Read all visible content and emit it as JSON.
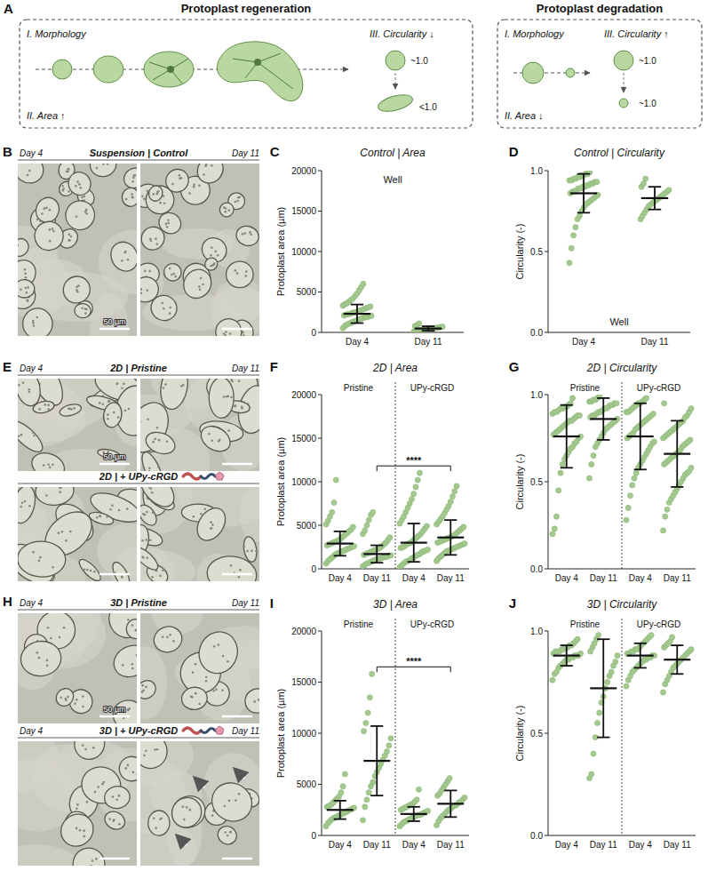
{
  "schematic": {
    "panel": "A",
    "boxes": [
      {
        "title": "Protoplast regeneration",
        "morphology": "I. Morphology",
        "area": "II. Area ↑",
        "circularity": "III. Circularity ↓",
        "circ_start": "~1.0",
        "circ_end": "<1.0"
      },
      {
        "title": "Protoplast degradation",
        "morphology": "I. Morphology",
        "area": "II. Area ↓",
        "circularity": "III. Circularity ↑",
        "circ_start": "~1.0",
        "circ_end": "~1.0"
      }
    ]
  },
  "micrographs": [
    {
      "panel": "B",
      "scale_label": "50 µm",
      "rows": [
        {
          "title": "Suspension | Control",
          "left": "Day 4",
          "right": "Day 11"
        }
      ]
    },
    {
      "panel": "E",
      "scale_label": "50 µm",
      "rows": [
        {
          "title": "2D | Pristine",
          "left": "Day 4",
          "right": "Day 11"
        },
        {
          "title": "2D | + UPy-cRGD"
        }
      ]
    },
    {
      "panel": "H",
      "scale_label": "50 µm",
      "rows": [
        {
          "title": "3D | Pristine",
          "left": "Day 4",
          "right": "Day 11"
        },
        {
          "title": "3D | + UPy-cRGD",
          "left": "Day 4",
          "right": "Day 11"
        }
      ]
    }
  ],
  "chart_data": [
    {
      "type": "scatter",
      "panel": "C",
      "title": "Control | Area",
      "annotation": "Well",
      "ylabel": "Protoplast area (µm)",
      "categories": [
        "Day 4",
        "Day 11"
      ],
      "points": [
        [
          520,
          800,
          950,
          1100,
          1200,
          1300,
          1400,
          1500,
          1600,
          1700,
          1800,
          1850,
          1900,
          2000,
          2050,
          2100,
          2200,
          2250,
          2300,
          2400,
          2450,
          2500,
          2600,
          2700,
          2800,
          2900,
          3000,
          3100,
          3200,
          3300,
          3500,
          3600,
          3800,
          4000,
          4200,
          4500,
          4800,
          5200,
          5600,
          6000
        ],
        [
          120,
          180,
          220,
          260,
          300,
          340,
          380,
          420,
          450,
          480,
          520,
          560,
          600,
          650,
          700,
          780,
          900,
          1100
        ]
      ],
      "mean": [
        2300,
        480
      ],
      "sd": [
        1150,
        280
      ],
      "ylim": [
        0,
        20000
      ],
      "yticks": [
        0,
        5000,
        10000,
        15000,
        20000
      ],
      "color": "#a3c98f"
    },
    {
      "type": "scatter",
      "panel": "D",
      "title": "Control | Circularity",
      "annotation": "Well",
      "ylabel": "Circularity (-)",
      "categories": [
        "Day 4",
        "Day 11"
      ],
      "points": [
        [
          0.43,
          0.52,
          0.6,
          0.65,
          0.7,
          0.72,
          0.75,
          0.77,
          0.79,
          0.8,
          0.81,
          0.82,
          0.83,
          0.84,
          0.85,
          0.86,
          0.87,
          0.87,
          0.88,
          0.89,
          0.89,
          0.9,
          0.9,
          0.91,
          0.91,
          0.92,
          0.92,
          0.93,
          0.93,
          0.94,
          0.94,
          0.95,
          0.95,
          0.96,
          0.96,
          0.97,
          0.97,
          0.98,
          0.98,
          0.99
        ],
        [
          0.7,
          0.72,
          0.74,
          0.76,
          0.78,
          0.79,
          0.8,
          0.81,
          0.82,
          0.83,
          0.84,
          0.85,
          0.86,
          0.87,
          0.88,
          0.9,
          0.92,
          0.95
        ]
      ],
      "mean": [
        0.86,
        0.83
      ],
      "sd": [
        0.12,
        0.07
      ],
      "ylim": [
        0,
        1
      ],
      "yticks": [
        {
          "value": 0,
          "label": "0.0"
        },
        0.5,
        {
          "value": 1,
          "label": "1.0"
        }
      ],
      "color": "#a3c98f"
    },
    {
      "type": "scatter",
      "panel": "F",
      "title": "2D | Area",
      "ylabel": "Protoplast area (µm)",
      "categories": [
        "Day 4",
        "Day 11",
        "Day 4",
        "Day 11"
      ],
      "group_labels": [
        "Pristine",
        "UPy-cRGD"
      ],
      "points": [
        [
          600,
          900,
          1100,
          1300,
          1500,
          1700,
          1800,
          1900,
          2000,
          2100,
          2200,
          2300,
          2400,
          2500,
          2600,
          2700,
          2800,
          2900,
          3000,
          3100,
          3200,
          3300,
          3500,
          3700,
          3900,
          4100,
          4300,
          4500,
          4800,
          5100,
          5500,
          6000,
          6500,
          7600,
          10200
        ],
        [
          300,
          450,
          600,
          700,
          800,
          900,
          1000,
          1100,
          1150,
          1200,
          1300,
          1350,
          1400,
          1500,
          1550,
          1600,
          1700,
          1800,
          1900,
          2000,
          2100,
          2200,
          2300,
          2400,
          2600,
          2800,
          3000,
          3300,
          3600,
          4000,
          4400,
          5000,
          5600,
          6200,
          6500
        ],
        [
          200,
          400,
          600,
          800,
          900,
          1000,
          1200,
          1300,
          1500,
          1600,
          1700,
          1900,
          2000,
          2100,
          2200,
          2400,
          2500,
          2600,
          2800,
          2900,
          3000,
          3200,
          3400,
          3600,
          3800,
          4000,
          4300,
          4600,
          4900,
          5200,
          5600,
          6000,
          6500,
          7000,
          7500,
          8000,
          8600,
          9400,
          10200,
          11000
        ],
        [
          900,
          1200,
          1400,
          1600,
          1800,
          2000,
          2100,
          2200,
          2300,
          2400,
          2500,
          2600,
          2700,
          2800,
          2900,
          3000,
          3100,
          3200,
          3300,
          3400,
          3500,
          3600,
          3700,
          3800,
          4000,
          4200,
          4400,
          4600,
          4800,
          5100,
          5400,
          5700,
          6000,
          6400,
          6800,
          7200,
          7700,
          8300,
          8900,
          9500
        ]
      ],
      "mean": [
        2900,
        1700,
        3000,
        3600
      ],
      "sd": [
        1400,
        1000,
        2200,
        2000
      ],
      "significance": [
        {
          "label": "****",
          "between": [
            1,
            3
          ]
        }
      ],
      "ylim": [
        0,
        20000
      ],
      "yticks": [
        0,
        5000,
        10000,
        15000,
        20000
      ],
      "color": "#a3c98f"
    },
    {
      "type": "scatter",
      "panel": "G",
      "title": "2D | Circularity",
      "ylabel": "Circularity (-)",
      "categories": [
        "Day 4",
        "Day 11",
        "Day 4",
        "Day 11"
      ],
      "group_labels": [
        "Pristine",
        "UPy-cRGD"
      ],
      "points": [
        [
          0.2,
          0.23,
          0.3,
          0.45,
          0.55,
          0.6,
          0.63,
          0.65,
          0.67,
          0.69,
          0.7,
          0.72,
          0.73,
          0.75,
          0.76,
          0.77,
          0.78,
          0.79,
          0.8,
          0.81,
          0.82,
          0.83,
          0.84,
          0.85,
          0.85,
          0.86,
          0.87,
          0.88,
          0.88,
          0.89,
          0.9,
          0.9,
          0.91,
          0.92,
          0.92,
          0.93,
          0.93,
          0.94,
          0.95,
          0.98
        ],
        [
          0.52,
          0.6,
          0.65,
          0.7,
          0.72,
          0.74,
          0.76,
          0.78,
          0.8,
          0.81,
          0.82,
          0.83,
          0.84,
          0.85,
          0.86,
          0.87,
          0.88,
          0.88,
          0.89,
          0.9,
          0.9,
          0.91,
          0.92,
          0.92,
          0.93,
          0.94,
          0.94,
          0.95,
          0.95,
          0.96,
          0.96,
          0.97,
          0.97,
          0.98,
          0.99
        ],
        [
          0.28,
          0.35,
          0.42,
          0.48,
          0.52,
          0.55,
          0.58,
          0.6,
          0.62,
          0.64,
          0.66,
          0.68,
          0.7,
          0.72,
          0.73,
          0.75,
          0.76,
          0.77,
          0.78,
          0.8,
          0.81,
          0.82,
          0.83,
          0.84,
          0.85,
          0.86,
          0.87,
          0.88,
          0.89,
          0.9,
          0.9,
          0.91,
          0.92,
          0.93,
          0.94,
          0.95,
          0.95,
          0.96,
          0.97,
          0.98
        ],
        [
          0.22,
          0.3,
          0.34,
          0.38,
          0.4,
          0.42,
          0.44,
          0.46,
          0.48,
          0.5,
          0.52,
          0.54,
          0.55,
          0.56,
          0.58,
          0.6,
          0.61,
          0.62,
          0.63,
          0.64,
          0.65,
          0.66,
          0.67,
          0.68,
          0.7,
          0.71,
          0.72,
          0.73,
          0.74,
          0.75,
          0.76,
          0.77,
          0.78,
          0.79,
          0.8,
          0.81,
          0.82,
          0.83,
          0.84,
          0.85,
          0.87,
          0.88,
          0.9,
          0.92,
          0.95
        ]
      ],
      "mean": [
        0.76,
        0.86,
        0.76,
        0.66
      ],
      "sd": [
        0.18,
        0.12,
        0.19,
        0.19
      ],
      "ylim": [
        0,
        1
      ],
      "yticks": [
        {
          "value": 0,
          "label": "0.0"
        },
        0.5,
        {
          "value": 1,
          "label": "1.0"
        }
      ],
      "color": "#a3c98f"
    },
    {
      "type": "scatter",
      "panel": "I",
      "title": "3D | Area",
      "ylabel": "Protoplast area (µm)",
      "categories": [
        "Day 4",
        "Day 11",
        "Day 4",
        "Day 11"
      ],
      "group_labels": [
        "Pristine",
        "UPy-cRGD"
      ],
      "points": [
        [
          900,
          1200,
          1400,
          1600,
          1700,
          1800,
          1900,
          2000,
          2100,
          2200,
          2300,
          2400,
          2500,
          2600,
          2700,
          2800,
          2900,
          3000,
          3200,
          3400,
          3600,
          3800,
          4200,
          4800,
          6000
        ],
        [
          1500,
          2800,
          3500,
          4200,
          4800,
          5200,
          5800,
          6200,
          6600,
          7000,
          7400,
          7800,
          8200,
          8800,
          9500,
          10200,
          11000,
          12000,
          13500,
          15800
        ],
        [
          900,
          1100,
          1300,
          1400,
          1500,
          1600,
          1700,
          1800,
          1900,
          2000,
          2000,
          2100,
          2200,
          2300,
          2400,
          2500,
          2600,
          2700,
          2800,
          2900,
          3000,
          3100,
          3300,
          3500,
          4500
        ],
        [
          1000,
          1400,
          1700,
          1900,
          2100,
          2300,
          2500,
          2600,
          2800,
          2900,
          3000,
          3200,
          3300,
          3500,
          3700,
          3900,
          4100,
          4400,
          4700,
          5000,
          5300,
          5600
        ]
      ],
      "mean": [
        2500,
        7300,
        2100,
        3100
      ],
      "sd": [
        900,
        3400,
        700,
        1300
      ],
      "significance": [
        {
          "label": "****",
          "between": [
            1,
            3
          ]
        }
      ],
      "ylim": [
        0,
        20000
      ],
      "yticks": [
        0,
        5000,
        10000,
        15000,
        20000
      ],
      "color": "#a3c98f"
    },
    {
      "type": "scatter",
      "panel": "J",
      "title": "3D | Circularity",
      "ylabel": "Circularity (-)",
      "categories": [
        "Day 4",
        "Day 11",
        "Day 4",
        "Day 11"
      ],
      "group_labels": [
        "Pristine",
        "UPy-cRGD"
      ],
      "points": [
        [
          0.76,
          0.79,
          0.8,
          0.82,
          0.83,
          0.84,
          0.85,
          0.86,
          0.86,
          0.87,
          0.87,
          0.88,
          0.88,
          0.88,
          0.89,
          0.89,
          0.9,
          0.9,
          0.9,
          0.91,
          0.91,
          0.92,
          0.92,
          0.93,
          0.93,
          0.94,
          0.95,
          0.96
        ],
        [
          0.28,
          0.3,
          0.4,
          0.48,
          0.55,
          0.6,
          0.65,
          0.68,
          0.72,
          0.75,
          0.78,
          0.8,
          0.83,
          0.85,
          0.88,
          0.9,
          0.92,
          0.94,
          0.96,
          0.98
        ],
        [
          0.73,
          0.76,
          0.78,
          0.8,
          0.81,
          0.82,
          0.83,
          0.84,
          0.85,
          0.86,
          0.86,
          0.87,
          0.87,
          0.88,
          0.88,
          0.89,
          0.89,
          0.9,
          0.9,
          0.91,
          0.91,
          0.92,
          0.93,
          0.94,
          0.95,
          0.96,
          0.97,
          0.98
        ],
        [
          0.7,
          0.74,
          0.76,
          0.78,
          0.8,
          0.82,
          0.83,
          0.84,
          0.85,
          0.86,
          0.87,
          0.88,
          0.89,
          0.9,
          0.91,
          0.92,
          0.93,
          0.94,
          0.95,
          0.97
        ]
      ],
      "mean": [
        0.88,
        0.72,
        0.88,
        0.86
      ],
      "sd": [
        0.05,
        0.24,
        0.06,
        0.07
      ],
      "ylim": [
        0,
        1
      ],
      "yticks": [
        {
          "value": 0,
          "label": "0.0"
        },
        0.5,
        {
          "value": 1,
          "label": "1.0"
        }
      ],
      "color": "#a3c98f"
    }
  ]
}
